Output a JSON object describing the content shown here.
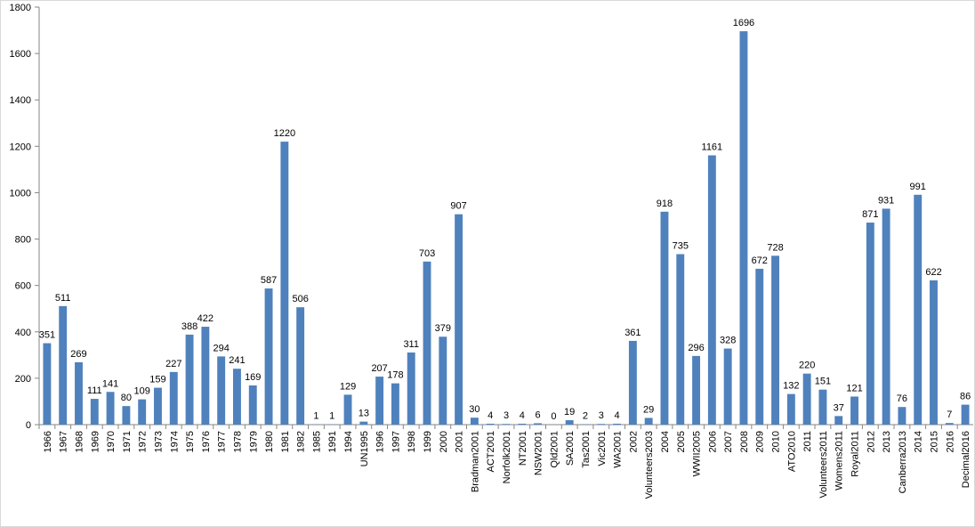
{
  "chart_data": {
    "type": "bar",
    "color": "#4f81bd",
    "categories": [
      "1966",
      "1967",
      "1968",
      "1969",
      "1970",
      "1971",
      "1972",
      "1973",
      "1974",
      "1975",
      "1976",
      "1977",
      "1978",
      "1979",
      "1980",
      "1981",
      "1982",
      "1985",
      "1991",
      "1994",
      "UN1995",
      "1996",
      "1997",
      "1998",
      "1999",
      "2000",
      "2001",
      "Bradman2001",
      "ACT2001",
      "Norfolk2001",
      "NT2001",
      "NSW2001",
      "Qld2001",
      "SA2001",
      "Tas2001",
      "Vic2001",
      "WA2001",
      "2002",
      "Volunteers2003",
      "2004",
      "2005",
      "WWII2005",
      "2006",
      "2007",
      "2008",
      "2009",
      "2010",
      "ATO2010",
      "2011",
      "Volunteers2011",
      "Womens2011",
      "Royal2011",
      "2012",
      "2013",
      "Canberra2013",
      "2014",
      "2015",
      "2016",
      "Decimal2016"
    ],
    "values": [
      351,
      511,
      269,
      111,
      141,
      80,
      109,
      159,
      227,
      388,
      422,
      294,
      241,
      169,
      587,
      1220,
      506,
      1,
      1,
      129,
      13,
      207,
      178,
      311,
      703,
      379,
      907,
      30,
      4,
      3,
      4,
      6,
      0,
      19,
      2,
      3,
      4,
      361,
      29,
      918,
      735,
      296,
      1161,
      328,
      1696,
      672,
      728,
      132,
      220,
      151,
      37,
      121,
      871,
      931,
      76,
      991,
      622,
      7,
      86
    ],
    "ylim": [
      0,
      1800
    ],
    "yticks": [
      0,
      200,
      400,
      600,
      800,
      1000,
      1200,
      1400,
      1600,
      1800
    ],
    "grid": false
  }
}
